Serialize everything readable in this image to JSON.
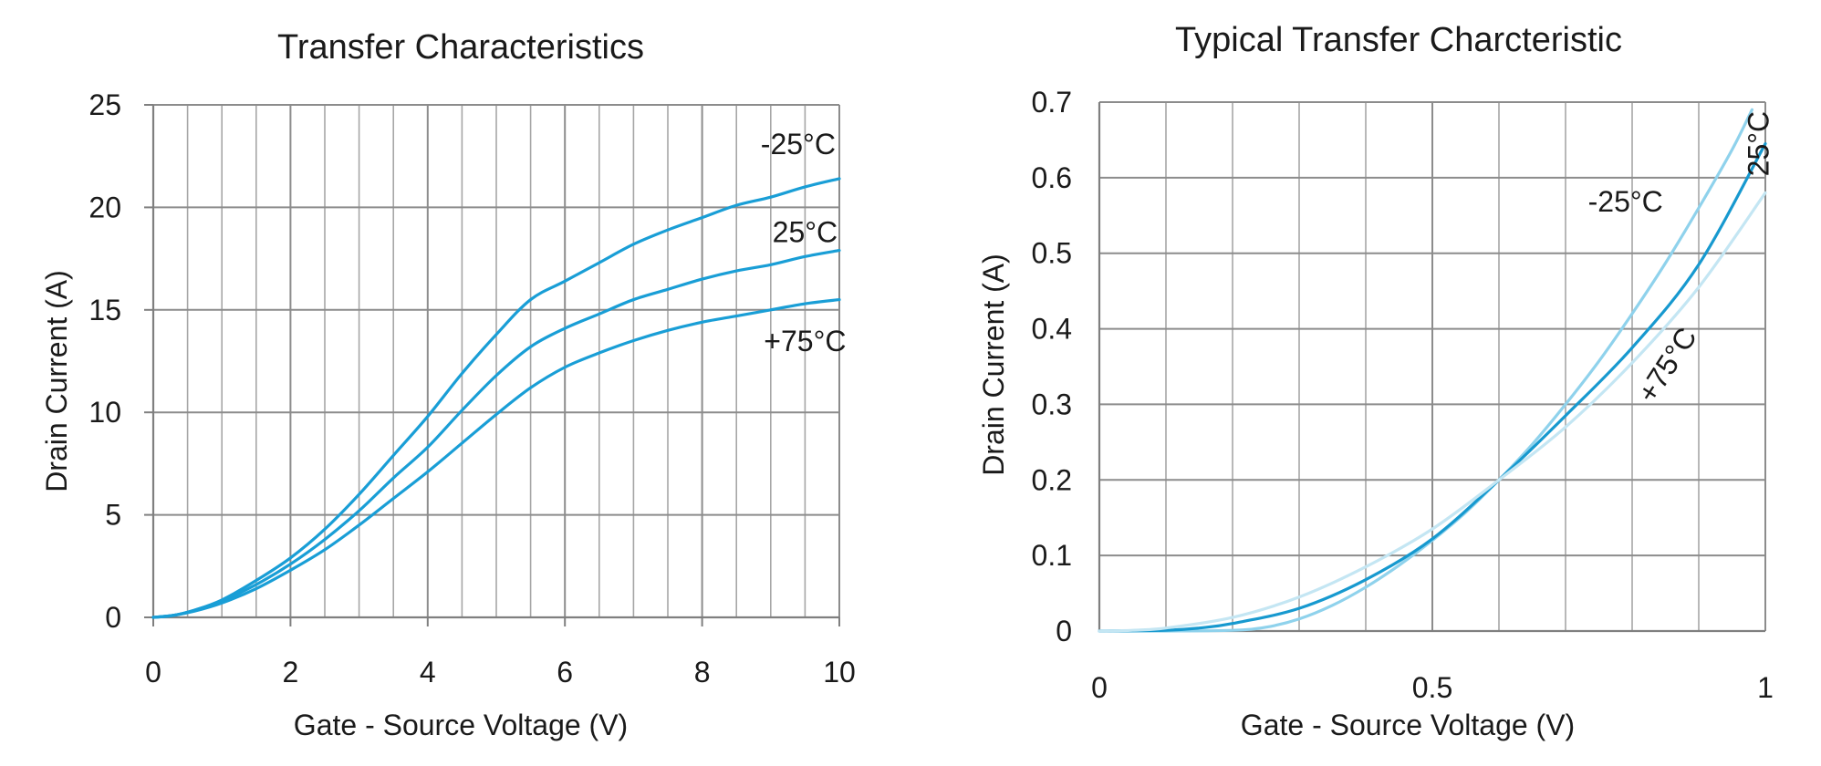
{
  "chart_data": [
    {
      "type": "line",
      "title": "Transfer Characteristics",
      "xlabel": "Gate - Source Voltage (V)",
      "ylabel": "Drain Current   (A)",
      "xlim": [
        0,
        10
      ],
      "ylim": [
        0,
        25
      ],
      "xticks": [
        0,
        2,
        4,
        6,
        8,
        10
      ],
      "xtick_labels": [
        "0",
        "2",
        "4",
        "6",
        "8",
        "10"
      ],
      "yticks": [
        0,
        5,
        10,
        15,
        20,
        25
      ],
      "ytick_labels": [
        "0",
        "5",
        "10",
        "15",
        "20",
        "25"
      ],
      "grid": true,
      "legend": "none",
      "series": [
        {
          "name": "-25°C",
          "color": "#199ed6",
          "x": [
            0,
            0.3,
            0.6,
            1.0,
            1.5,
            2.0,
            2.5,
            3.0,
            3.5,
            4.0,
            4.5,
            5.0,
            5.5,
            6.0,
            6.5,
            7.0,
            7.5,
            8.0,
            8.5,
            9.0,
            9.5,
            10.0
          ],
          "y": [
            0,
            0.1,
            0.35,
            0.85,
            1.8,
            2.9,
            4.3,
            6.0,
            7.9,
            9.8,
            11.9,
            13.8,
            15.5,
            16.4,
            17.3,
            18.2,
            18.9,
            19.5,
            20.1,
            20.5,
            21.0,
            21.4
          ]
        },
        {
          "name": "25°C",
          "color": "#199ed6",
          "x": [
            0,
            0.3,
            0.6,
            1.0,
            1.5,
            2.0,
            2.5,
            3.0,
            3.5,
            4.0,
            4.5,
            5.0,
            5.5,
            6.0,
            6.5,
            7.0,
            7.5,
            8.0,
            8.5,
            9.0,
            9.5,
            10.0
          ],
          "y": [
            0,
            0.1,
            0.35,
            0.8,
            1.6,
            2.6,
            3.8,
            5.2,
            6.8,
            8.3,
            10.1,
            11.8,
            13.2,
            14.1,
            14.8,
            15.5,
            16.0,
            16.5,
            16.9,
            17.2,
            17.6,
            17.9
          ]
        },
        {
          "name": "+75°C",
          "color": "#199ed6",
          "x": [
            0,
            0.3,
            0.6,
            1.0,
            1.5,
            2.0,
            2.5,
            3.0,
            3.5,
            4.0,
            4.5,
            5.0,
            5.5,
            6.0,
            6.5,
            7.0,
            7.5,
            8.0,
            8.5,
            9.0,
            9.5,
            10.0
          ],
          "y": [
            0,
            0.1,
            0.3,
            0.7,
            1.4,
            2.3,
            3.3,
            4.5,
            5.8,
            7.1,
            8.5,
            9.9,
            11.2,
            12.2,
            12.9,
            13.5,
            14.0,
            14.4,
            14.7,
            15.0,
            15.3,
            15.5
          ]
        }
      ],
      "annotations": [
        {
          "text": "-25°C",
          "x": 9.4,
          "y": 22.6
        },
        {
          "text": "25°C",
          "x": 9.5,
          "y": 18.3
        },
        {
          "text": "+75°C",
          "x": 9.5,
          "y": 13.0
        }
      ]
    },
    {
      "type": "line",
      "title": "Typical Transfer Charcteristic",
      "xlabel": "Gate - Source Voltage (V)",
      "ylabel": "Drain Current (A)",
      "xlim": [
        0,
        1
      ],
      "ylim": [
        0,
        0.7
      ],
      "xticks": [
        0,
        0.5,
        1
      ],
      "xtick_labels": [
        "0",
        "0.5",
        "1"
      ],
      "yticks": [
        0,
        0.1,
        0.2,
        0.3,
        0.4,
        0.5,
        0.6,
        0.7
      ],
      "ytick_labels": [
        "0",
        "0.1",
        "0.2",
        "0.3",
        "0.4",
        "0.5",
        "0.6",
        "0.7"
      ],
      "grid": true,
      "legend": "none",
      "series": [
        {
          "name": "-25°C",
          "color": "#8fd2ec",
          "x": [
            0,
            0.1,
            0.2,
            0.25,
            0.3,
            0.35,
            0.4,
            0.45,
            0.5,
            0.55,
            0.6,
            0.65,
            0.7,
            0.75,
            0.8,
            0.85,
            0.9,
            0.95,
            0.98
          ],
          "y": [
            0,
            0,
            0.001,
            0.005,
            0.016,
            0.034,
            0.058,
            0.087,
            0.12,
            0.157,
            0.2,
            0.247,
            0.3,
            0.357,
            0.42,
            0.487,
            0.56,
            0.637,
            0.69
          ]
        },
        {
          "name": "25°C",
          "color": "#1799cf",
          "x": [
            0,
            0.1,
            0.15,
            0.2,
            0.3,
            0.4,
            0.5,
            0.6,
            0.7,
            0.8,
            0.9,
            1.0
          ],
          "y": [
            0,
            0.001,
            0.004,
            0.01,
            0.03,
            0.068,
            0.122,
            0.2,
            0.285,
            0.375,
            0.485,
            0.645
          ]
        },
        {
          "name": "+75°C",
          "color": "#c4e6f3",
          "x": [
            0,
            0.05,
            0.1,
            0.2,
            0.3,
            0.4,
            0.5,
            0.6,
            0.7,
            0.8,
            0.9,
            1.0
          ],
          "y": [
            0,
            0.001,
            0.004,
            0.018,
            0.045,
            0.085,
            0.135,
            0.2,
            0.27,
            0.355,
            0.455,
            0.58
          ]
        }
      ],
      "annotations": [
        {
          "text": "-25°C",
          "x": 0.79,
          "y": 0.555,
          "rotate": 0
        },
        {
          "text": "25°C",
          "x": 1.005,
          "y": 0.645,
          "rotate": -90
        },
        {
          "text": "+75°C",
          "x": 0.865,
          "y": 0.345,
          "rotate": -57
        }
      ]
    }
  ]
}
